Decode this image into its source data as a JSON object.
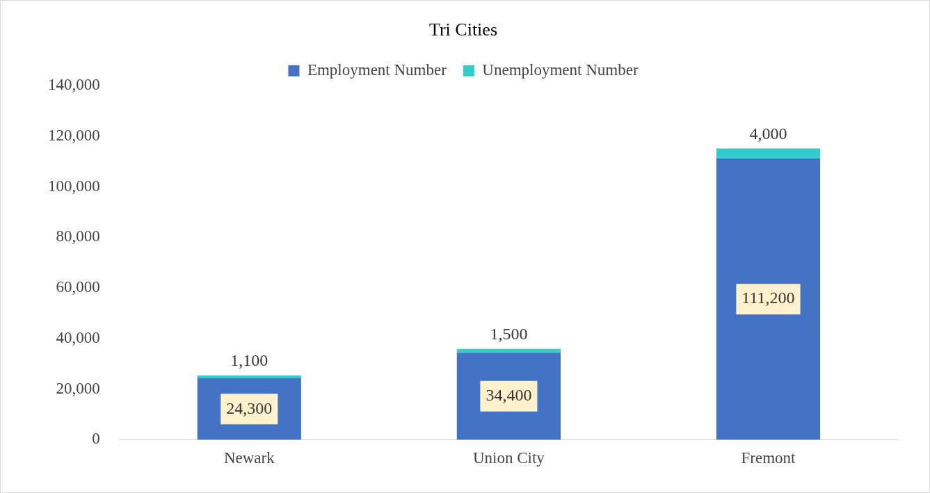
{
  "chart_data": {
    "type": "bar",
    "title": "Tri Cities",
    "categories": [
      "Newark",
      "Union City",
      "Fremont"
    ],
    "stacked": true,
    "series": [
      {
        "name": "Employment Number",
        "color": "#4472c4",
        "values": [
          24300,
          34400,
          111200
        ],
        "value_labels": [
          "24,300",
          "34,400",
          "111,200"
        ]
      },
      {
        "name": "Unemployment Number",
        "color": "#33cccc",
        "values": [
          1100,
          1500,
          4000
        ],
        "value_labels": [
          "1,100",
          "1,500",
          "4,000"
        ]
      }
    ],
    "ylim": [
      0,
      140000
    ],
    "yticks": [
      {
        "value": 0,
        "label": "0"
      },
      {
        "value": 20000,
        "label": "20,000"
      },
      {
        "value": 40000,
        "label": "40,000"
      },
      {
        "value": 60000,
        "label": "60,000"
      },
      {
        "value": 80000,
        "label": "80,000"
      },
      {
        "value": 100000,
        "label": "100,000"
      },
      {
        "value": 120000,
        "label": "120,000"
      },
      {
        "value": 140000,
        "label": "140,000"
      }
    ],
    "legend": "top"
  }
}
